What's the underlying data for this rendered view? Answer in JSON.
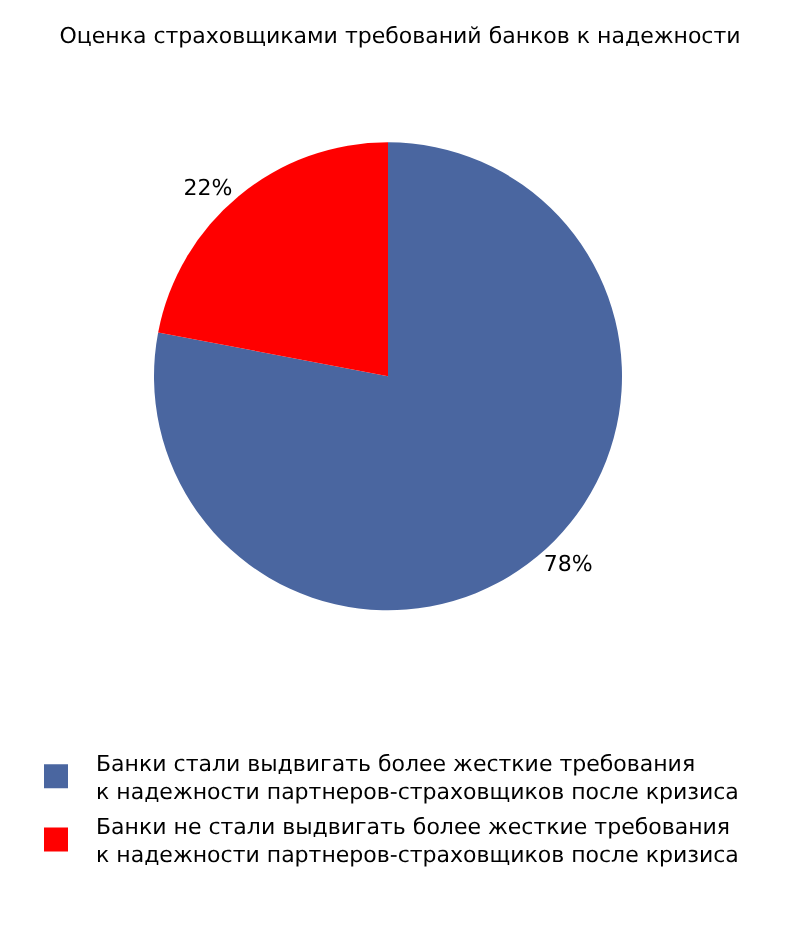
{
  "chart_data": {
    "type": "pie",
    "title": "Оценка страховщиками требований банков к надежности",
    "categories": [
      "Банки стали выдвигать более жесткие требования\nк надежности партнеров-страховщиков после кризиса",
      "Банки не стали выдвигать более жесткие требования\nк надежности партнеров-страховщиков после кризиса"
    ],
    "values": [
      78,
      22
    ],
    "colors": [
      "#4a66a0",
      "#ff0000"
    ],
    "value_labels": [
      "78%",
      "22%"
    ],
    "legend": "bottom"
  }
}
